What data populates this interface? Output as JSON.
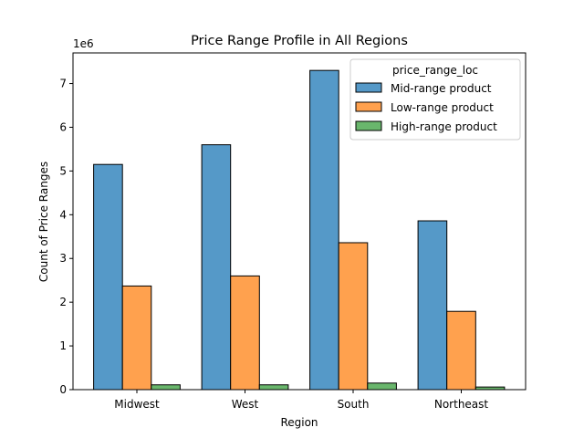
{
  "chart_data": {
    "type": "bar",
    "title": "Price Range Profile in All Regions",
    "xlabel": "Region",
    "ylabel": "Count of Price Ranges",
    "y_multiplier_label": "1e6",
    "categories": [
      "Midwest",
      "West",
      "South",
      "Northeast"
    ],
    "series": [
      {
        "name": "Mid-range product",
        "color": "#5599c8",
        "values": [
          5.15,
          5.6,
          7.3,
          3.86
        ]
      },
      {
        "name": "Low-range product",
        "color": "#ffa14e",
        "values": [
          2.37,
          2.6,
          3.36,
          1.79
        ]
      },
      {
        "name": "High-range product",
        "color": "#69b66c",
        "values": [
          0.11,
          0.11,
          0.15,
          0.06
        ]
      }
    ],
    "ylim": [
      0,
      7.7
    ],
    "yticks": [
      0,
      1,
      2,
      3,
      4,
      5,
      6,
      7
    ],
    "grid": false,
    "legend": {
      "title": "price_range_loc",
      "placement": "top-right"
    }
  }
}
